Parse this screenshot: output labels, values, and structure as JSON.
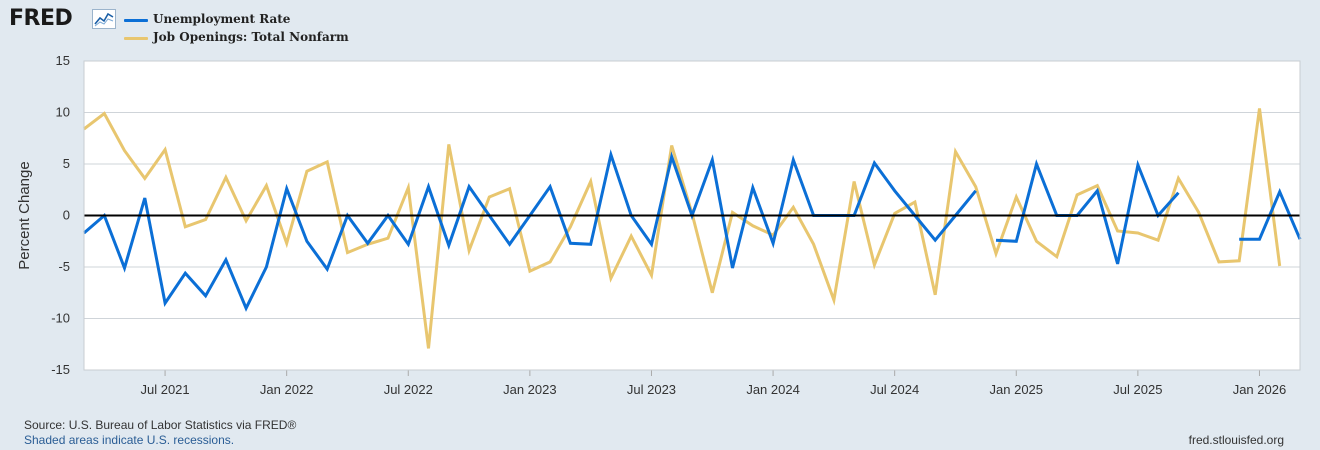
{
  "header": {
    "logo_text": "FRED",
    "logo_icon": "line-chart-icon"
  },
  "legend": [
    {
      "label": "Unemployment Rate",
      "color": "#0b6fd6"
    },
    {
      "label": "Job Openings: Total Nonfarm",
      "color": "#e8c66f"
    }
  ],
  "footer": {
    "source": "Source: U.S. Bureau of Labor Statistics via FRED®",
    "note": "Shaded areas indicate U.S. recessions.",
    "url": "fred.stlouisfed.org"
  },
  "chart_data": {
    "type": "line",
    "ylabel": "Percent Change",
    "ylim": [
      -15,
      15
    ],
    "yticks": [
      15,
      10,
      5,
      0,
      -5,
      -10,
      -15
    ],
    "xlim": [
      "2021-03",
      "2026-03"
    ],
    "xticks": [
      {
        "label": "Jul 2021",
        "date": "2021-07"
      },
      {
        "label": "Jan 2022",
        "date": "2022-01"
      },
      {
        "label": "Jul 2022",
        "date": "2022-07"
      },
      {
        "label": "Jan 2023",
        "date": "2023-01"
      },
      {
        "label": "Jul 2023",
        "date": "2023-07"
      },
      {
        "label": "Jan 2024",
        "date": "2024-01"
      },
      {
        "label": "Jul 2024",
        "date": "2024-07"
      },
      {
        "label": "Jan 2025",
        "date": "2025-01"
      },
      {
        "label": "Jul 2025",
        "date": "2025-07"
      },
      {
        "label": "Jan 2026",
        "date": "2026-01"
      }
    ],
    "grid": true,
    "zero_line": true,
    "series": [
      {
        "name": "Unemployment Rate",
        "color": "#0b6fd6",
        "points": [
          [
            "2021-03",
            -1.7
          ],
          [
            "2021-04",
            0.0
          ],
          [
            "2021-05",
            -5.1
          ],
          [
            "2021-06",
            1.7
          ],
          [
            "2021-07",
            -8.5
          ],
          [
            "2021-08",
            -5.6
          ],
          [
            "2021-09",
            -7.8
          ],
          [
            "2021-10",
            -4.3
          ],
          [
            "2021-11",
            -9.0
          ],
          [
            "2021-12",
            -5.0
          ],
          [
            "2022-01",
            2.6
          ],
          [
            "2022-02",
            -2.5
          ],
          [
            "2022-03",
            -5.2
          ],
          [
            "2022-04",
            0.0
          ],
          [
            "2022-05",
            -2.7
          ],
          [
            "2022-06",
            0.0
          ],
          [
            "2022-07",
            -2.8
          ],
          [
            "2022-08",
            2.8
          ],
          [
            "2022-09",
            -2.9
          ],
          [
            "2022-10",
            2.8
          ],
          [
            "2022-11",
            0.0
          ],
          [
            "2022-12",
            -2.8
          ],
          [
            "2023-01",
            0.0
          ],
          [
            "2023-02",
            2.8
          ],
          [
            "2023-03",
            -2.7
          ],
          [
            "2023-04",
            -2.8
          ],
          [
            "2023-05",
            5.9
          ],
          [
            "2023-06",
            0.0
          ],
          [
            "2023-07",
            -2.8
          ],
          [
            "2023-08",
            5.7
          ],
          [
            "2023-09",
            0.0
          ],
          [
            "2023-10",
            5.4
          ],
          [
            "2023-11",
            -5.1
          ],
          [
            "2023-12",
            2.7
          ],
          [
            "2024-01",
            -2.7
          ],
          [
            "2024-02",
            5.4
          ],
          [
            "2024-03",
            0.0
          ],
          [
            "2024-04",
            0.0
          ],
          [
            "2024-05",
            0.0
          ],
          [
            "2024-06",
            5.1
          ],
          [
            "2024-07",
            2.4
          ],
          [
            "2024-08",
            0.0
          ],
          [
            "2024-09",
            -2.4
          ],
          [
            "2024-10",
            0.0
          ],
          [
            "2024-11",
            2.4
          ],
          null,
          [
            "2024-12",
            -2.4
          ],
          [
            "2025-01",
            -2.5
          ],
          [
            "2025-02",
            5.0
          ],
          [
            "2025-03",
            0.0
          ],
          [
            "2025-04",
            0.0
          ],
          [
            "2025-05",
            2.4
          ],
          [
            "2025-06",
            -4.7
          ],
          [
            "2025-07",
            4.9
          ],
          [
            "2025-08",
            0.0
          ],
          [
            "2025-09",
            2.2
          ],
          null,
          [
            "2025-12",
            -2.3
          ],
          [
            "2026-01",
            -2.3
          ],
          [
            "2026-02",
            2.3
          ],
          [
            "2026-03",
            -2.3
          ]
        ]
      },
      {
        "name": "Job Openings: Total Nonfarm",
        "color": "#e8c66f",
        "points": [
          [
            "2021-03",
            8.4
          ],
          [
            "2021-04",
            9.9
          ],
          [
            "2021-05",
            6.3
          ],
          [
            "2021-06",
            3.6
          ],
          [
            "2021-07",
            6.4
          ],
          [
            "2021-08",
            -1.1
          ],
          [
            "2021-09",
            -0.4
          ],
          [
            "2021-10",
            3.7
          ],
          [
            "2021-11",
            -0.5
          ],
          [
            "2021-12",
            2.9
          ],
          [
            "2022-01",
            -2.7
          ],
          [
            "2022-02",
            4.3
          ],
          [
            "2022-03",
            5.2
          ],
          [
            "2022-04",
            -3.6
          ],
          [
            "2022-05",
            -2.8
          ],
          [
            "2022-06",
            -2.2
          ],
          [
            "2022-07",
            2.7
          ],
          [
            "2022-08",
            -12.9
          ],
          [
            "2022-09",
            6.9
          ],
          [
            "2022-10",
            -3.4
          ],
          [
            "2022-11",
            1.8
          ],
          [
            "2022-12",
            2.6
          ],
          [
            "2023-01",
            -5.4
          ],
          [
            "2023-02",
            -4.5
          ],
          [
            "2023-03",
            -1.1
          ],
          [
            "2023-04",
            3.3
          ],
          [
            "2023-05",
            -6.1
          ],
          [
            "2023-06",
            -2.0
          ],
          [
            "2023-07",
            -5.8
          ],
          [
            "2023-08",
            6.8
          ],
          [
            "2023-09",
            0.2
          ],
          [
            "2023-10",
            -7.5
          ],
          [
            "2023-11",
            0.3
          ],
          [
            "2023-12",
            -1.0
          ],
          [
            "2024-01",
            -1.9
          ],
          [
            "2024-02",
            0.8
          ],
          [
            "2024-03",
            -2.8
          ],
          [
            "2024-04",
            -8.2
          ],
          [
            "2024-05",
            3.3
          ],
          [
            "2024-06",
            -4.8
          ],
          [
            "2024-07",
            0.2
          ],
          [
            "2024-08",
            1.3
          ],
          [
            "2024-09",
            -7.7
          ],
          [
            "2024-10",
            6.2
          ],
          [
            "2024-11",
            2.8
          ],
          [
            "2024-12",
            -3.7
          ],
          [
            "2025-01",
            1.8
          ],
          [
            "2025-02",
            -2.5
          ],
          [
            "2025-03",
            -4.0
          ],
          [
            "2025-04",
            2.0
          ],
          [
            "2025-05",
            2.9
          ],
          [
            "2025-06",
            -1.5
          ],
          [
            "2025-07",
            -1.7
          ],
          [
            "2025-08",
            -2.4
          ],
          [
            "2025-09",
            3.6
          ],
          [
            "2025-10",
            0.3
          ],
          [
            "2025-11",
            -4.5
          ],
          [
            "2025-12",
            -4.4
          ],
          [
            "2026-01",
            10.4
          ],
          [
            "2026-02",
            -4.9
          ]
        ]
      }
    ]
  }
}
